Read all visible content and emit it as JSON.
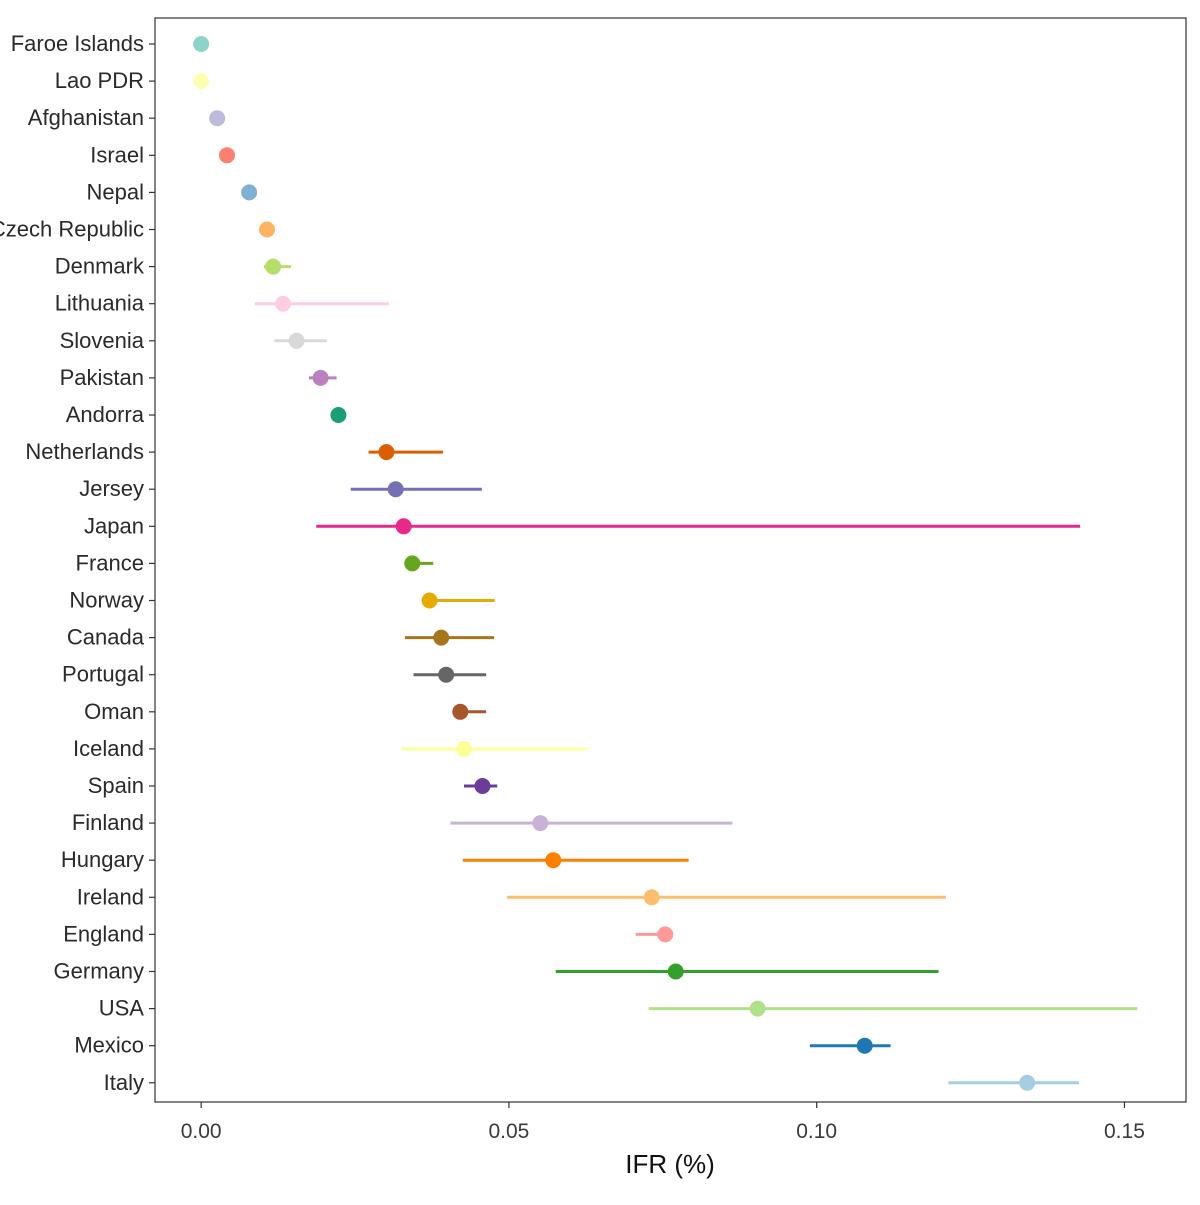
{
  "chart_data": {
    "type": "scatter",
    "xlabel": "IFR (%)",
    "xlim": [
      -0.0075,
      0.16
    ],
    "xticks": [
      0.0,
      0.05,
      0.1,
      0.15
    ],
    "xtick_labels": [
      "0.00",
      "0.05",
      "0.10",
      "0.15"
    ],
    "grid": false,
    "legend": "none",
    "error_bars": true,
    "points": [
      {
        "label": "Faroe Islands",
        "value": 0.0,
        "low": null,
        "high": null,
        "color": "#8DD3C7"
      },
      {
        "label": "Lao PDR",
        "value": 0.0,
        "low": null,
        "high": null,
        "color": "#FFFFB3"
      },
      {
        "label": "Afghanistan",
        "value": 0.0026,
        "low": null,
        "high": null,
        "color": "#BEBADA"
      },
      {
        "label": "Israel",
        "value": 0.0042,
        "low": null,
        "high": null,
        "color": "#FB8072"
      },
      {
        "label": "Nepal",
        "value": 0.0078,
        "low": null,
        "high": null,
        "color": "#80B1D3"
      },
      {
        "label": "Czech Republic",
        "value": 0.0107,
        "low": null,
        "high": null,
        "color": "#FDB462"
      },
      {
        "label": "Denmark",
        "value": 0.0117,
        "low": 0.0102,
        "high": 0.0146,
        "color": "#B3DE69"
      },
      {
        "label": "Lithuania",
        "value": 0.0133,
        "low": 0.0087,
        "high": 0.0305,
        "color": "#FCCDE5"
      },
      {
        "label": "Slovenia",
        "value": 0.0155,
        "low": 0.0119,
        "high": 0.0204,
        "color": "#D9D9D9"
      },
      {
        "label": "Pakistan",
        "value": 0.0194,
        "low": 0.0175,
        "high": 0.022,
        "color": "#BC80BD"
      },
      {
        "label": "Andorra",
        "value": 0.0223,
        "low": null,
        "high": null,
        "color": "#1B9E77"
      },
      {
        "label": "Netherlands",
        "value": 0.0301,
        "low": 0.0272,
        "high": 0.0393,
        "color": "#D95F02"
      },
      {
        "label": "Jersey",
        "value": 0.0316,
        "low": 0.0243,
        "high": 0.0456,
        "color": "#7570B3"
      },
      {
        "label": "Japan",
        "value": 0.0329,
        "low": 0.0187,
        "high": 0.1428,
        "color": "#E7298A"
      },
      {
        "label": "France",
        "value": 0.0343,
        "low": 0.0335,
        "high": 0.0377,
        "color": "#66A61E"
      },
      {
        "label": "Norway",
        "value": 0.0371,
        "low": 0.0363,
        "high": 0.0477,
        "color": "#E6AB02"
      },
      {
        "label": "Canada",
        "value": 0.039,
        "low": 0.0331,
        "high": 0.0476,
        "color": "#A6761D"
      },
      {
        "label": "Portugal",
        "value": 0.0398,
        "low": 0.0345,
        "high": 0.0463,
        "color": "#666666"
      },
      {
        "label": "Oman",
        "value": 0.0421,
        "low": 0.0417,
        "high": 0.0463,
        "color": "#A6562A"
      },
      {
        "label": "Iceland",
        "value": 0.0427,
        "low": 0.0325,
        "high": 0.0626,
        "color": "#FFFF99"
      },
      {
        "label": "Spain",
        "value": 0.0457,
        "low": 0.0427,
        "high": 0.0481,
        "color": "#6A3D9A"
      },
      {
        "label": "Finland",
        "value": 0.0551,
        "low": 0.0405,
        "high": 0.0863,
        "color": "#CAB2D6"
      },
      {
        "label": "Hungary",
        "value": 0.0572,
        "low": 0.0425,
        "high": 0.0792,
        "color": "#FF7F00"
      },
      {
        "label": "Ireland",
        "value": 0.0732,
        "low": 0.0497,
        "high": 0.121,
        "color": "#FDBF6F"
      },
      {
        "label": "England",
        "value": 0.0754,
        "low": 0.0706,
        "high": 0.0761,
        "color": "#FB9A99"
      },
      {
        "label": "Germany",
        "value": 0.0771,
        "low": 0.0576,
        "high": 0.1198,
        "color": "#33A02C"
      },
      {
        "label": "USA",
        "value": 0.0904,
        "low": 0.0727,
        "high": 0.1521,
        "color": "#B2DF8A"
      },
      {
        "label": "Mexico",
        "value": 0.1078,
        "low": 0.0989,
        "high": 0.112,
        "color": "#1F78B4"
      },
      {
        "label": "Italy",
        "value": 0.1342,
        "low": 0.1214,
        "high": 0.1426,
        "color": "#A6CEE3"
      }
    ]
  }
}
